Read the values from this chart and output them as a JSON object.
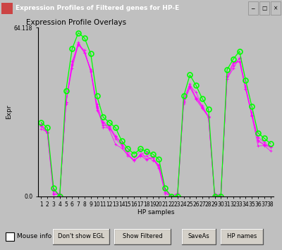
{
  "title": "Expression Profiles of Filtered genes for HP-E",
  "plot_title": "Expression Profile Overlays",
  "xlabel": "HP samples",
  "ylabel": "Expr",
  "ylim": [
    0.0,
    64.118
  ],
  "yticks": [
    0.0,
    64.118
  ],
  "ytick_labels": [
    "0.0",
    "64.118"
  ],
  "n_samples": 38,
  "bg_color": "#c0c0c0",
  "plot_bg_color": "#c0c0c0",
  "green_line_color": "#00ff00",
  "magenta_line_color": "#ff00ff",
  "window_title_bg": "#000080",
  "window_title_color": "#ffffff",
  "green_data": [
    28,
    26,
    3,
    0,
    40,
    56,
    62,
    60,
    54,
    38,
    30,
    28,
    26,
    21,
    18,
    16,
    18,
    17,
    16,
    14,
    3,
    0,
    0,
    38,
    46,
    42,
    37,
    33,
    0,
    0,
    48,
    52,
    55,
    44,
    34,
    24,
    22,
    20
  ],
  "magenta_data": [
    26,
    24,
    2,
    0,
    36,
    50,
    58,
    55,
    48,
    34,
    28,
    26,
    22,
    19,
    16,
    14,
    16,
    15,
    14,
    12,
    2,
    0,
    0,
    35,
    42,
    38,
    34,
    30,
    0,
    0,
    45,
    49,
    52,
    41,
    31,
    21,
    20,
    18
  ],
  "button_labels": [
    "Mouse info",
    "Don't show EGL",
    "Show Filtered",
    "SaveAs",
    "HP names"
  ],
  "checkbox_label": "Mouse info"
}
